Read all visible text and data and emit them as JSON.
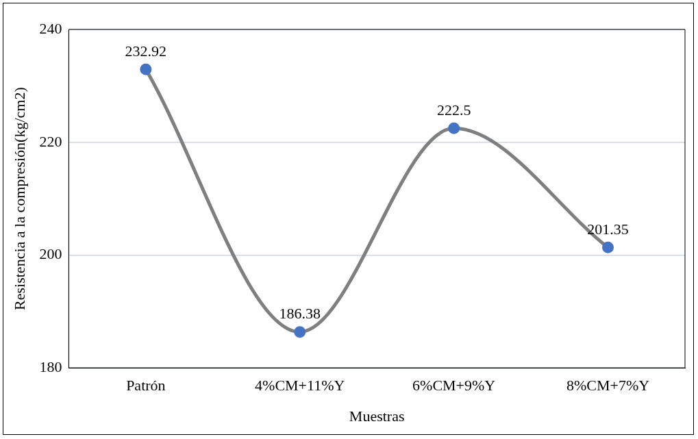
{
  "chart_data": {
    "type": "line",
    "xlabel": "Muestras",
    "ylabel": "Resistencia a la compresión(kg/cm2)",
    "categories": [
      "Patrón",
      "4%CM+11%Y",
      "6%CM+9%Y",
      "8%CM+7%Y"
    ],
    "series": [
      {
        "color": "#7f7f7f",
        "colors": [
          "#4472c4",
          "#4472c4",
          "#4472c4",
          "#4472c4"
        ],
        "values": [
          232.92,
          186.38,
          222.5,
          201.35
        ]
      }
    ],
    "ylim": [
      180,
      240
    ],
    "yticks": [
      180,
      200,
      220,
      240
    ],
    "grid": "y",
    "marker": "circle",
    "line_style": "solid",
    "data_labels": true,
    "legend": false
  }
}
